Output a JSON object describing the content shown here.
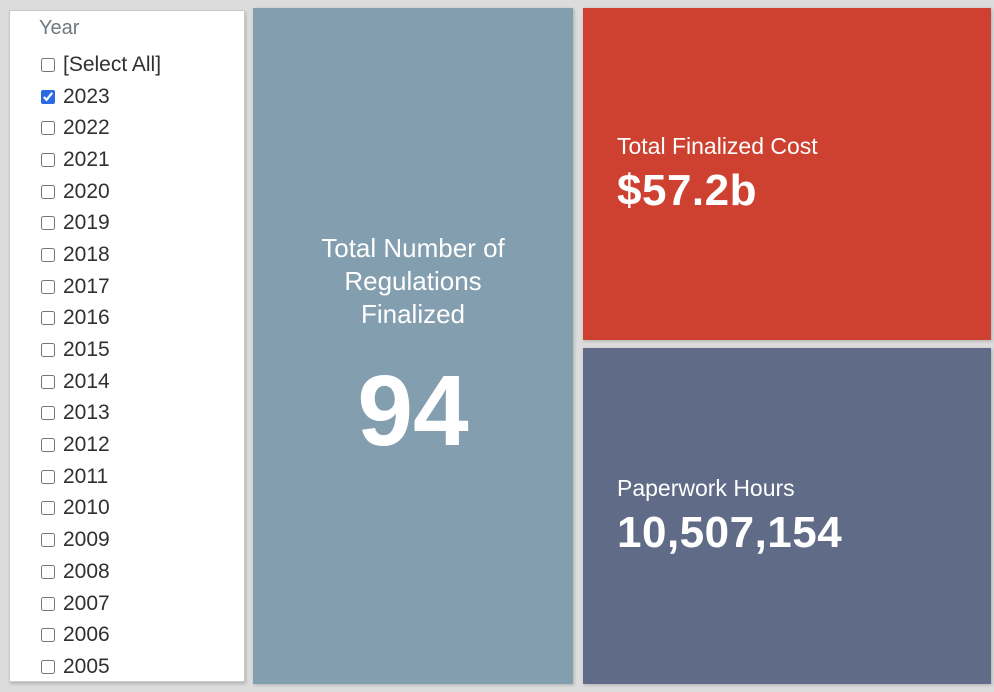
{
  "page": {
    "background": "#dcdcdc"
  },
  "filter": {
    "title": "Year",
    "items": [
      {
        "label": "[Select All]",
        "checked": false
      },
      {
        "label": "2023",
        "checked": true
      },
      {
        "label": "2022",
        "checked": false
      },
      {
        "label": "2021",
        "checked": false
      },
      {
        "label": "2020",
        "checked": false
      },
      {
        "label": "2019",
        "checked": false
      },
      {
        "label": "2018",
        "checked": false
      },
      {
        "label": "2017",
        "checked": false
      },
      {
        "label": "2016",
        "checked": false
      },
      {
        "label": "2015",
        "checked": false
      },
      {
        "label": "2014",
        "checked": false
      },
      {
        "label": "2013",
        "checked": false
      },
      {
        "label": "2012",
        "checked": false
      },
      {
        "label": "2011",
        "checked": false
      },
      {
        "label": "2010",
        "checked": false
      },
      {
        "label": "2009",
        "checked": false
      },
      {
        "label": "2008",
        "checked": false
      },
      {
        "label": "2007",
        "checked": false
      },
      {
        "label": "2006",
        "checked": false
      },
      {
        "label": "2005",
        "checked": false
      }
    ]
  },
  "tiles": {
    "regulations": {
      "title": "Total Number of Regulations Finalized",
      "value": "94",
      "bg": "#839eaf"
    },
    "cost": {
      "title": "Total Finalized Cost",
      "value": "$57.2b",
      "bg": "#ce4130"
    },
    "hours": {
      "title": "Paperwork Hours",
      "value": "10,507,154",
      "bg": "#5f6b87"
    }
  },
  "colors": {
    "checkbox_accent": "#2b6be2",
    "filter_title_text": "#6e7880",
    "filter_label_text": "#303030",
    "tile_text": "#ffffff"
  }
}
